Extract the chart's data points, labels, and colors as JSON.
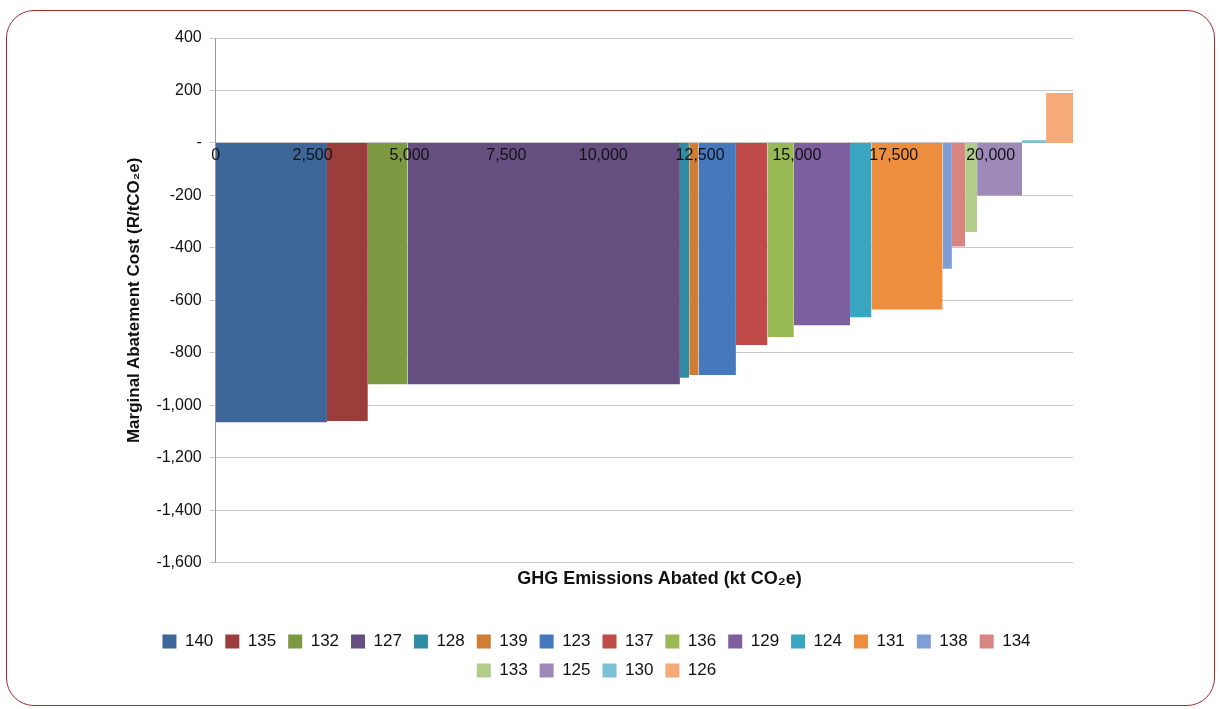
{
  "chart_data": {
    "type": "area",
    "xlabel": "GHG Emissions Abated (kt CO₂e)",
    "ylabel": "Marginal Abatement Cost (R/tCO₂e)",
    "xlim": [
      0,
      22125
    ],
    "xticks": [
      0,
      {
        "value": 2500,
        "label": "2,500"
      },
      {
        "value": 5000,
        "label": "5,000"
      },
      {
        "value": 7500,
        "label": "7,500"
      },
      {
        "value": 10000,
        "label": "10,000"
      },
      {
        "value": 12500,
        "label": "12,500"
      },
      {
        "value": 15000,
        "label": "15,000"
      },
      {
        "value": 17500,
        "label": "17,500"
      },
      {
        "value": 20000,
        "label": "20,000"
      }
    ],
    "ylim": [
      -1600,
      400
    ],
    "yticks": [
      {
        "value": -1600,
        "label": "-1,600"
      },
      {
        "value": -1400,
        "label": "-1,400"
      },
      {
        "value": -1200,
        "label": "-1,200"
      },
      {
        "value": -1000,
        "label": "-1,000"
      },
      -800,
      -600,
      -400,
      -200,
      {
        "value": 0,
        "label": "-"
      },
      200,
      400
    ],
    "grid": "y",
    "legend": "bottom",
    "marker": "none",
    "series": [
      {
        "name": "140",
        "color": "#3c6798",
        "x": [
          0,
          2870
        ],
        "values": [
          -1065,
          -1065
        ]
      },
      {
        "name": "135",
        "color": "#9b3d3b",
        "x": [
          2870,
          3925
        ],
        "values": [
          -1060,
          -1060
        ]
      },
      {
        "name": "132",
        "color": "#7d9a42",
        "x": [
          3925,
          4950
        ],
        "values": [
          -920,
          -920
        ]
      },
      {
        "name": "127",
        "color": "#654f80",
        "x": [
          4950,
          11980
        ],
        "values": [
          -920,
          -920
        ]
      },
      {
        "name": "128",
        "color": "#2f8da3",
        "x": [
          11980,
          12220
        ],
        "values": [
          -895,
          -895
        ]
      },
      {
        "name": "139",
        "color": "#d07d35",
        "x": [
          12220,
          12460
        ],
        "values": [
          -885,
          -885
        ]
      },
      {
        "name": "123",
        "color": "#4578bd",
        "x": [
          12460,
          13425
        ],
        "values": [
          -885,
          -885
        ]
      },
      {
        "name": "137",
        "color": "#be4b48",
        "x": [
          13425,
          14240
        ],
        "values": [
          -770,
          -770
        ]
      },
      {
        "name": "136",
        "color": "#98b954",
        "x": [
          14240,
          14920
        ],
        "values": [
          -740,
          -740
        ]
      },
      {
        "name": "129",
        "color": "#7d5fa0",
        "x": [
          14920,
          16370
        ],
        "values": [
          -695,
          -695
        ]
      },
      {
        "name": "124",
        "color": "#3aa5c0",
        "x": [
          16370,
          16925
        ],
        "values": [
          -665,
          -665
        ]
      },
      {
        "name": "131",
        "color": "#ec8e3e",
        "x": [
          16925,
          18760
        ],
        "values": [
          -635,
          -635
        ]
      },
      {
        "name": "138",
        "color": "#809ed6",
        "x": [
          18760,
          19000
        ],
        "values": [
          -480,
          -480
        ]
      },
      {
        "name": "134",
        "color": "#d88582",
        "x": [
          19000,
          19340
        ],
        "values": [
          -395,
          -395
        ]
      },
      {
        "name": "133",
        "color": "#b2cd8a",
        "x": [
          19340,
          19650
        ],
        "values": [
          -340,
          -340
        ]
      },
      {
        "name": "125",
        "color": "#9e8ab8",
        "x": [
          19650,
          20810
        ],
        "values": [
          -200,
          -200
        ]
      },
      {
        "name": "130",
        "color": "#7bc1d6",
        "x": [
          20810,
          21430
        ],
        "values": [
          10,
          10
        ]
      },
      {
        "name": "126",
        "color": "#f5aa77",
        "x": [
          21430,
          22125
        ],
        "values": [
          190,
          190
        ]
      }
    ]
  }
}
